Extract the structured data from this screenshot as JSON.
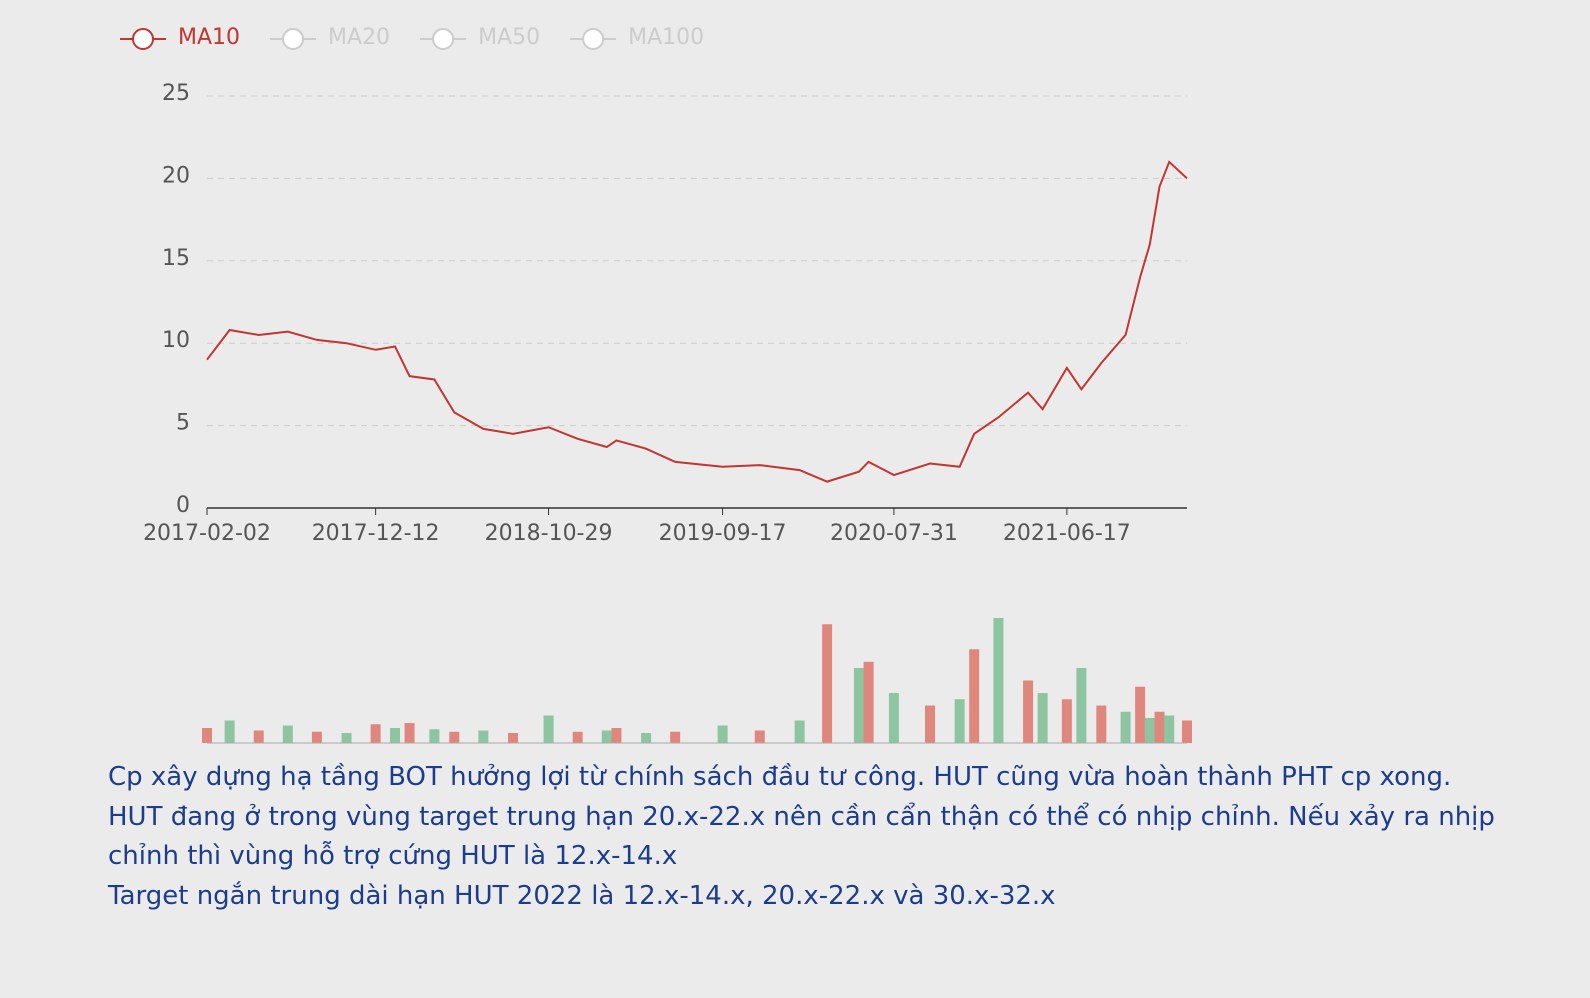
{
  "chart_data": {
    "type": "line",
    "x": [
      "2017-02-02",
      "2017-03-16",
      "2017-05-09",
      "2017-07-02",
      "2017-08-25",
      "2017-10-19",
      "2017-12-12",
      "2018-01-17",
      "2018-02-13",
      "2018-03-31",
      "2018-05-07",
      "2018-06-30",
      "2018-08-24",
      "2018-10-29",
      "2018-12-22",
      "2019-02-14",
      "2019-03-04",
      "2019-04-28",
      "2019-06-21",
      "2019-09-17",
      "2019-11-25",
      "2020-02-07",
      "2020-03-29",
      "2020-05-27",
      "2020-06-14",
      "2020-07-31",
      "2020-10-06",
      "2020-11-30",
      "2020-12-27",
      "2021-02-10",
      "2021-04-06",
      "2021-05-03",
      "2021-06-17",
      "2021-07-14",
      "2021-08-20",
      "2021-10-04",
      "2021-10-31",
      "2021-11-18",
      "2021-12-06",
      "2021-12-24",
      "2022-01-26"
    ],
    "series": [
      {
        "name": "MA10",
        "color": "#c23531",
        "values": [
          9,
          10.8,
          10.5,
          10.7,
          10.2,
          10,
          9.6,
          9.8,
          8,
          7.8,
          5.8,
          4.8,
          4.5,
          4.9,
          4.2,
          3.7,
          4.1,
          3.6,
          2.8,
          2.5,
          2.6,
          2.3,
          1.6,
          2.2,
          2.8,
          2.0,
          2.7,
          2.5,
          4.5,
          5.5,
          7,
          6,
          8.5,
          7.2,
          8.8,
          10.5,
          14,
          16,
          19.5,
          21,
          20
        ]
      }
    ],
    "hidden_series": [
      "MA20",
      "MA50",
      "MA100"
    ],
    "xlim": [
      "2017-02-02",
      "2022-01-26"
    ],
    "xticks": [
      "2017-02-02",
      "2017-12-12",
      "2018-10-29",
      "2019-09-17",
      "2020-07-31",
      "2021-06-17"
    ],
    "ylim": [
      0,
      25
    ],
    "yticks": [
      0,
      5,
      10,
      15,
      20,
      25
    ],
    "grid": true,
    "volume": {
      "ylim": [
        0,
        100
      ],
      "colors": [
        "#e0877d",
        "#8cc5a0"
      ],
      "values": [
        12,
        18,
        10,
        14,
        9,
        8,
        15,
        12,
        16,
        11,
        9,
        10,
        8,
        22,
        9,
        10,
        12,
        8,
        9,
        14,
        10,
        18,
        95,
        60,
        65,
        40,
        30,
        35,
        75,
        100,
        50,
        40,
        35,
        60,
        30,
        25,
        45,
        20,
        25,
        22,
        18
      ]
    }
  },
  "note": {
    "lines": [
      "Cp xây dựng hạ tầng BOT hưởng lợi từ chính sách đầu tư công. HUT cũng vừa hoàn thành PHT cp xong.",
      "HUT đang ở trong vùng target trung hạn 20.x-22.x nên cần cẩn thận có thể có nhịp chỉnh. Nếu xảy ra nhịp",
      "chỉnh thì vùng hỗ trợ cứng HUT là 12.x-14.x",
      "Target ngắn trung dài hạn HUT 2022 là 12.x-14.x, 20.x-22.x và 30.x-32.x"
    ]
  }
}
